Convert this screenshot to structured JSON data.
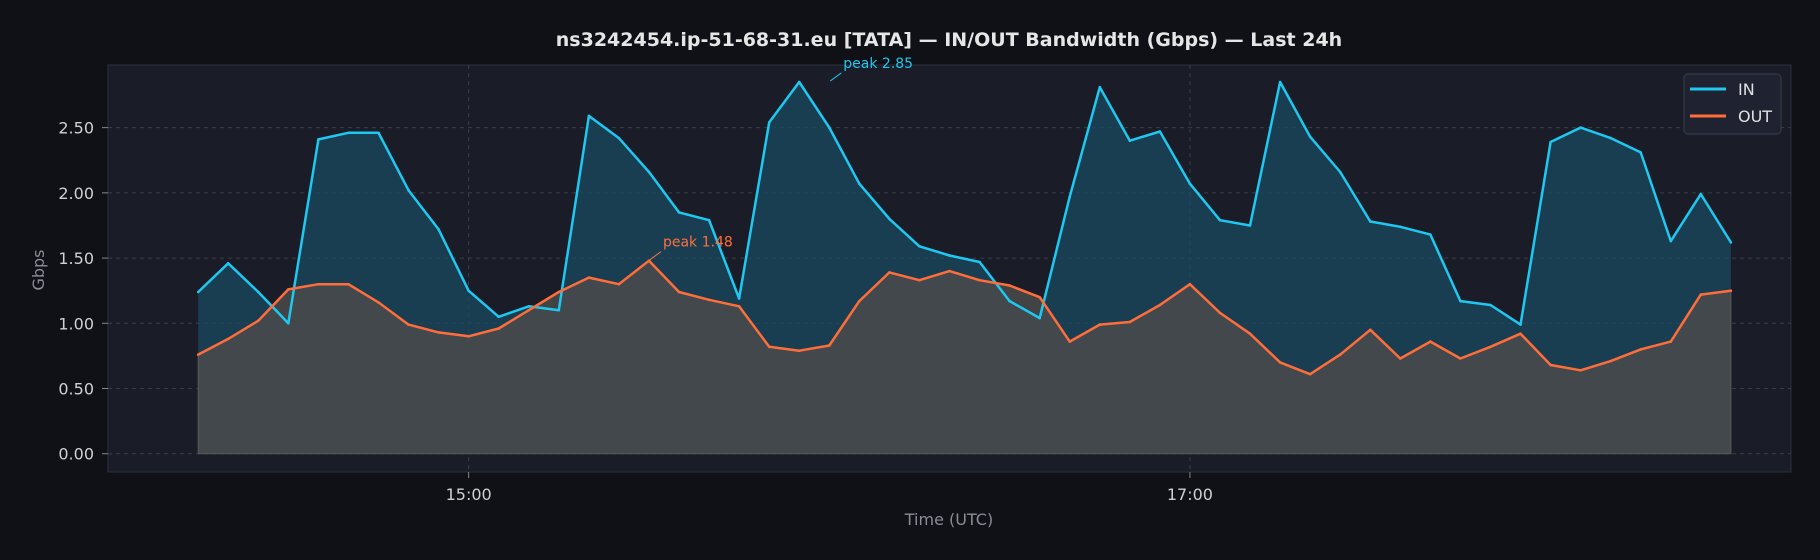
{
  "chart_data": {
    "type": "area",
    "title": "ns3242454.ip-51-68-31.eu [TATA] — IN/OUT Bandwidth (Gbps) — Last 24h",
    "xlabel": "Time (UTC)",
    "ylabel": "Gbps",
    "x_ticks": [
      "15:00",
      "17:00"
    ],
    "y_ticks": [
      "0.00",
      "0.50",
      "1.00",
      "1.50",
      "2.00",
      "2.50"
    ],
    "ylim": [
      -0.14,
      2.98
    ],
    "xlim": [
      "14:00",
      "18:40"
    ],
    "grid": true,
    "legend_position": "top-right",
    "x": [
      "14:15",
      "14:20",
      "14:25",
      "14:30",
      "14:35",
      "14:40",
      "14:45",
      "14:50",
      "14:55",
      "15:00",
      "15:05",
      "15:10",
      "15:15",
      "15:20",
      "15:25",
      "15:30",
      "15:35",
      "15:40",
      "15:45",
      "15:50",
      "15:55",
      "16:00",
      "16:05",
      "16:10",
      "16:15",
      "16:20",
      "16:25",
      "16:30",
      "16:35",
      "16:40",
      "16:45",
      "16:50",
      "16:55",
      "17:00",
      "17:05",
      "17:10",
      "17:15",
      "17:20",
      "17:25",
      "17:30",
      "17:35",
      "17:40",
      "17:45",
      "17:50",
      "17:55",
      "18:00",
      "18:05",
      "18:10",
      "18:15",
      "18:20",
      "18:25",
      "18:30"
    ],
    "series": [
      {
        "name": "IN",
        "color": "#1ec8f0",
        "values": [
          1.24,
          1.46,
          1.24,
          1.0,
          2.41,
          2.46,
          2.46,
          2.02,
          1.72,
          1.25,
          1.05,
          1.13,
          1.1,
          2.59,
          2.42,
          2.16,
          1.85,
          1.79,
          1.19,
          2.54,
          2.85,
          2.5,
          2.07,
          1.8,
          1.59,
          1.52,
          1.47,
          1.17,
          1.04,
          1.97,
          2.81,
          2.4,
          2.47,
          2.07,
          1.79,
          1.75,
          2.85,
          2.43,
          2.16,
          1.78,
          1.74,
          1.68,
          1.17,
          1.14,
          0.99,
          2.39,
          2.5,
          2.42,
          2.31,
          1.63,
          1.99,
          1.62
        ]
      },
      {
        "name": "OUT",
        "color": "#ff6e3a",
        "values": [
          0.76,
          0.88,
          1.02,
          1.26,
          1.3,
          1.3,
          1.16,
          0.99,
          0.93,
          0.9,
          0.96,
          1.1,
          1.24,
          1.35,
          1.3,
          1.48,
          1.24,
          1.18,
          1.13,
          0.82,
          0.79,
          0.83,
          1.17,
          1.39,
          1.33,
          1.4,
          1.33,
          1.29,
          1.2,
          0.86,
          0.99,
          1.01,
          1.14,
          1.3,
          1.08,
          0.92,
          0.7,
          0.61,
          0.76,
          0.95,
          0.73,
          0.86,
          0.73,
          0.82,
          0.92,
          0.68,
          0.64,
          0.71,
          0.8,
          0.86,
          1.22,
          1.25
        ]
      }
    ],
    "annotations": [
      {
        "text": "peak 2.85",
        "series": "IN",
        "x": "16:00",
        "y": 2.85,
        "color": "#1ec8f0"
      },
      {
        "text": "peak 1.48",
        "series": "OUT",
        "x": "15:30",
        "y": 1.48,
        "color": "#ff6e3a"
      }
    ]
  }
}
